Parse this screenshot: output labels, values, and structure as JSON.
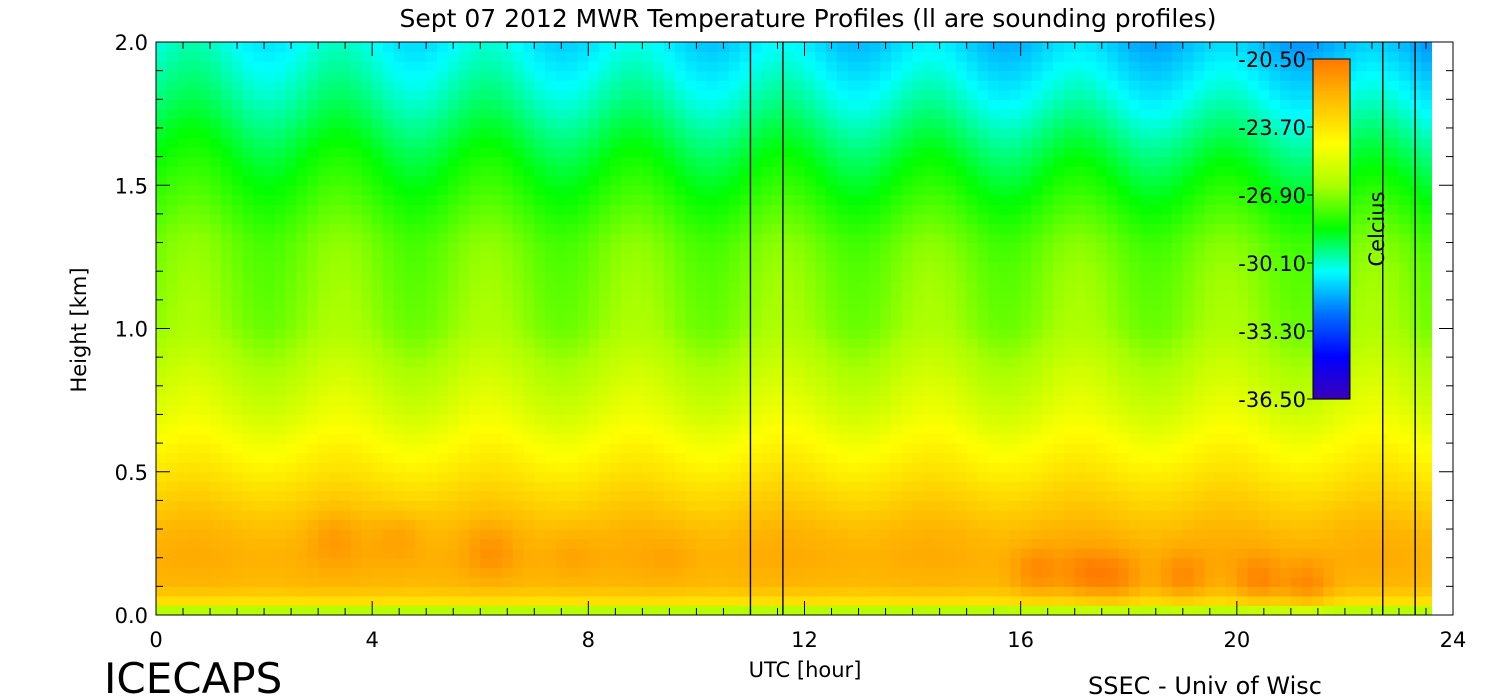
{
  "chart_data": {
    "type": "heatmap",
    "title": "Sept 07 2012 MWR Temperature Profiles (ll are sounding profiles)",
    "xlabel": "UTC [hour]",
    "ylabel": "Height [km]",
    "xlim": [
      0,
      24
    ],
    "ylim": [
      0,
      2.0
    ],
    "x_ticks": [
      "0",
      "4",
      "8",
      "12",
      "16",
      "20",
      "24"
    ],
    "y_ticks": [
      "0.0",
      "0.5",
      "1.0",
      "1.5",
      "2.0"
    ],
    "colorbar": {
      "label": "Celcius",
      "range": [
        -36.5,
        -20.5
      ],
      "ticks": [
        "-20.50",
        "-23.70",
        "-26.90",
        "-30.10",
        "-33.30",
        "-36.50"
      ]
    },
    "data_extent_hours": [
      0,
      23.6
    ],
    "sounding_times": [
      11.0,
      11.6,
      22.7,
      23.3
    ],
    "temperature_profile": {
      "height_km": [
        0.0,
        0.05,
        0.1,
        0.2,
        0.3,
        0.4,
        0.5,
        0.7,
        1.0,
        1.3,
        1.6,
        1.8,
        2.0
      ],
      "temp_c": [
        -27.5,
        -23.5,
        -22.3,
        -22.0,
        -22.3,
        -23.0,
        -23.8,
        -25.2,
        -26.8,
        -27.2,
        -28.5,
        -29.5,
        -30.3
      ]
    },
    "warm_cores": [
      {
        "hour": 3.3,
        "height_km": 0.27,
        "temp_c": -21.6
      },
      {
        "hour": 4.5,
        "height_km": 0.28,
        "temp_c": -21.6
      },
      {
        "hour": 6.2,
        "height_km": 0.22,
        "temp_c": -21.3
      },
      {
        "hour": 7.7,
        "height_km": 0.21,
        "temp_c": -21.6
      },
      {
        "hour": 9.5,
        "height_km": 0.2,
        "temp_c": -21.7
      },
      {
        "hour": 12.7,
        "height_km": 0.22,
        "temp_c": -22.0
      },
      {
        "hour": 16.3,
        "height_km": 0.15,
        "temp_c": -21.0
      },
      {
        "hour": 17.2,
        "height_km": 0.14,
        "temp_c": -21.0
      },
      {
        "hour": 17.8,
        "height_km": 0.13,
        "temp_c": -21.0
      },
      {
        "hour": 19.0,
        "height_km": 0.13,
        "temp_c": -21.0
      },
      {
        "hour": 20.4,
        "height_km": 0.12,
        "temp_c": -20.9
      },
      {
        "hour": 21.3,
        "height_km": 0.1,
        "temp_c": -20.9
      }
    ],
    "colormap": [
      "#3a00b8",
      "#0000ff",
      "#0070ff",
      "#00ffff",
      "#00ff00",
      "#a8ff00",
      "#ffff00",
      "#ffc000",
      "#ff7800"
    ]
  },
  "footer": {
    "brand": "ICECAPS",
    "credit": "SSEC - Univ of Wisc"
  }
}
